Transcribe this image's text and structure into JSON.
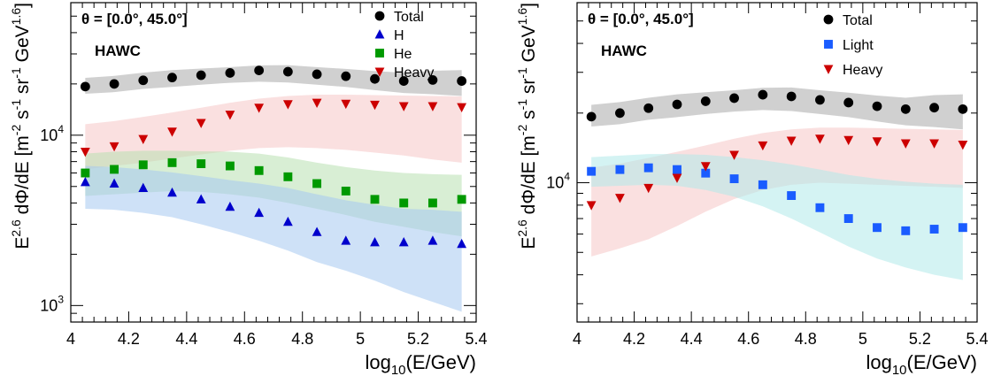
{
  "chart_data": [
    {
      "type": "scatter",
      "annotations": {
        "theta": "θ = [0.0°, 45.0°]",
        "experiment": "HAWC"
      },
      "xlabel": {
        "prefix": "log",
        "sub": "10",
        "suffix": "(E/GeV)"
      },
      "ylabel": "E^2.6 dΦ/dE [m^-2 s^-1 sr^-1 GeV^1.6]",
      "xlim": [
        4,
        5.4
      ],
      "ylim": [
        800,
        60000
      ],
      "log_y": true,
      "x_ticks": [
        "4",
        "4.2",
        "4.4",
        "4.6",
        "4.8",
        "5",
        "5.2",
        "5.4"
      ],
      "y_ticks": [
        {
          "value": 1000,
          "base": "10",
          "exp": "3"
        },
        {
          "value": 10000,
          "base": "10",
          "exp": "4"
        }
      ],
      "legend_position": "top-right",
      "x": [
        4.05,
        4.15,
        4.25,
        4.35,
        4.45,
        4.55,
        4.65,
        4.75,
        4.85,
        4.95,
        5.05,
        5.15,
        5.25,
        5.35
      ],
      "series": [
        {
          "name": "Total",
          "marker": "circle",
          "color": "#000000",
          "band_color": "#aaaaaa",
          "values": [
            19300,
            20000,
            21000,
            21800,
            22500,
            23200,
            24000,
            23600,
            22800,
            22200,
            21400,
            20800,
            21100,
            20800
          ],
          "band_low": [
            17500,
            17900,
            18700,
            19200,
            19800,
            20300,
            20600,
            20400,
            19800,
            19200,
            18400,
            17700,
            17400,
            17000
          ],
          "band_high": [
            21700,
            22300,
            23300,
            24100,
            24600,
            25100,
            25700,
            25800,
            25100,
            24500,
            23800,
            23300,
            23900,
            24100
          ]
        },
        {
          "name": "H",
          "marker": "triangle-up",
          "color": "#0000cc",
          "band_color": "#a6c8f0",
          "values": [
            5300,
            5200,
            4900,
            4600,
            4200,
            3800,
            3500,
            3100,
            2700,
            2400,
            2350,
            2350,
            2400,
            2300
          ],
          "band_low": [
            3700,
            3650,
            3500,
            3300,
            3000,
            2700,
            2400,
            2100,
            1800,
            1600,
            1400,
            1200,
            1050,
            920
          ],
          "band_high": [
            6600,
            6500,
            6300,
            6050,
            5750,
            5450,
            5200,
            4900,
            4500,
            4150,
            3900,
            3700,
            3650,
            3550
          ]
        },
        {
          "name": "He",
          "marker": "square",
          "color": "#009900",
          "band_color": "#b8e0b0",
          "values": [
            6000,
            6300,
            6700,
            6900,
            6800,
            6600,
            6200,
            5700,
            5200,
            4700,
            4200,
            4000,
            4000,
            4200
          ],
          "band_low": [
            4400,
            4500,
            4600,
            4700,
            4650,
            4500,
            4300,
            4000,
            3700,
            3400,
            3100,
            2900,
            2700,
            2550
          ],
          "band_high": [
            7800,
            8000,
            8100,
            8100,
            8050,
            8000,
            7800,
            7400,
            6900,
            6500,
            6200,
            6000,
            5900,
            5850
          ]
        },
        {
          "name": "Heavy",
          "marker": "triangle-down",
          "color": "#cc0000",
          "band_color": "#f6c6c6",
          "values": [
            8000,
            8600,
            9500,
            10500,
            11800,
            13200,
            14500,
            15200,
            15500,
            15300,
            15100,
            14800,
            14800,
            14600
          ],
          "band_low": [
            6300,
            6600,
            6900,
            7300,
            7700,
            8100,
            8400,
            8500,
            8400,
            8200,
            7900,
            7600,
            7200,
            6900
          ],
          "band_high": [
            11600,
            12100,
            12800,
            13600,
            14500,
            15500,
            16400,
            17000,
            17300,
            17300,
            17200,
            17100,
            17000,
            16900
          ]
        }
      ]
    },
    {
      "type": "scatter",
      "annotations": {
        "theta": "θ = [0.0°, 45.0°]",
        "experiment": "HAWC"
      },
      "xlabel": {
        "prefix": "log",
        "sub": "10",
        "suffix": "(E/GeV)"
      },
      "ylabel": "E^2.6 dΦ/dE [m^-2 s^-1 sr^-1 GeV^1.6]",
      "xlim": [
        4,
        5.4
      ],
      "ylim": [
        2500,
        60000
      ],
      "log_y": true,
      "x_ticks": [
        "4",
        "4.2",
        "4.4",
        "4.6",
        "4.8",
        "5",
        "5.2",
        "5.4"
      ],
      "y_ticks": [
        {
          "value": 10000,
          "base": "10",
          "exp": "4"
        }
      ],
      "legend_position": "top-right",
      "x": [
        4.05,
        4.15,
        4.25,
        4.35,
        4.45,
        4.55,
        4.65,
        4.75,
        4.85,
        4.95,
        5.05,
        5.15,
        5.25,
        5.35
      ],
      "series": [
        {
          "name": "Total",
          "marker": "circle",
          "color": "#000000",
          "band_color": "#aaaaaa",
          "values": [
            19300,
            20000,
            21000,
            21800,
            22500,
            23200,
            24000,
            23600,
            22800,
            22200,
            21400,
            20800,
            21100,
            20800
          ],
          "band_low": [
            17500,
            17900,
            18700,
            19200,
            19800,
            20300,
            20600,
            20400,
            19800,
            19200,
            18400,
            17700,
            17400,
            17000
          ],
          "band_high": [
            21700,
            22300,
            23300,
            24100,
            24600,
            25100,
            25700,
            25800,
            25100,
            24500,
            23800,
            23300,
            23900,
            24100
          ]
        },
        {
          "name": "Light",
          "marker": "square",
          "color": "#1a5cff",
          "band_color": "#b0eaea",
          "values": [
            11200,
            11400,
            11600,
            11400,
            11000,
            10400,
            9800,
            8800,
            7800,
            7000,
            6400,
            6200,
            6300,
            6400
          ],
          "band_low": [
            9600,
            9700,
            9800,
            9700,
            9300,
            8700,
            7900,
            7000,
            6100,
            5300,
            4700,
            4300,
            4000,
            3800
          ],
          "band_high": [
            12900,
            13100,
            13300,
            13300,
            13200,
            12900,
            12500,
            12000,
            11400,
            10800,
            10400,
            10100,
            9900,
            9800
          ]
        },
        {
          "name": "Heavy",
          "marker": "triangle-down",
          "color": "#cc0000",
          "band_color": "#f6c6c6",
          "values": [
            8000,
            8600,
            9500,
            10500,
            11800,
            13200,
            14500,
            15200,
            15500,
            15300,
            15100,
            14800,
            14800,
            14600
          ],
          "band_low": [
            4800,
            5200,
            5700,
            6500,
            7500,
            8500,
            9300,
            9800,
            10000,
            9900,
            9800,
            9700,
            9600,
            9500
          ],
          "band_high": [
            11600,
            12100,
            12800,
            13600,
            14500,
            15500,
            16400,
            17000,
            17300,
            17300,
            17200,
            17100,
            17000,
            16900
          ]
        }
      ]
    }
  ]
}
